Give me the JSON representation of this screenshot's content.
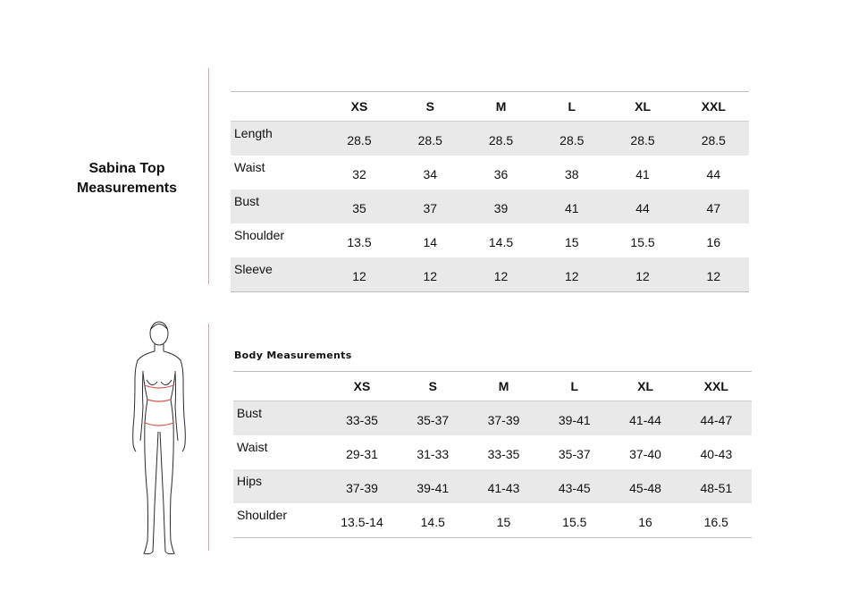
{
  "product": {
    "title_line1": "Sabina Top",
    "title_line2": "Measurements"
  },
  "top_table": {
    "sizes": [
      "XS",
      "S",
      "M",
      "L",
      "XL",
      "XXL"
    ],
    "rows": [
      {
        "label": "Length",
        "values": [
          "28.5",
          "28.5",
          "28.5",
          "28.5",
          "28.5",
          "28.5"
        ]
      },
      {
        "label": "Waist",
        "values": [
          "32",
          "34",
          "36",
          "38",
          "41",
          "44"
        ]
      },
      {
        "label": "Bust",
        "values": [
          "35",
          "37",
          "39",
          "41",
          "44",
          "47"
        ]
      },
      {
        "label": "Shoulder",
        "values": [
          "13.5",
          "14",
          "14.5",
          "15",
          "15.5",
          "16"
        ]
      },
      {
        "label": "Sleeve",
        "values": [
          "12",
          "12",
          "12",
          "12",
          "12",
          "12"
        ]
      }
    ]
  },
  "body_table": {
    "caption": "Body Measurements",
    "sizes": [
      "XS",
      "S",
      "M",
      "L",
      "XL",
      "XXL"
    ],
    "rows": [
      {
        "label": "Bust",
        "values": [
          "33-35",
          "35-37",
          "37-39",
          "39-41",
          "41-44",
          "44-47"
        ]
      },
      {
        "label": "Waist",
        "values": [
          "29-31",
          "31-33",
          "33-35",
          "35-37",
          "37-40",
          "40-43"
        ]
      },
      {
        "label": "Hips",
        "values": [
          "37-39",
          "39-41",
          "41-43",
          "43-45",
          "45-48",
          "48-51"
        ]
      },
      {
        "label": "Shoulder",
        "values": [
          "13.5-14",
          "14.5",
          "15",
          "15.5",
          "16",
          "16.5"
        ]
      }
    ]
  },
  "colors": {
    "divider": "#e3a6a3",
    "shaded_row": "#e9e9e9",
    "measure_marker": "#d9534f"
  }
}
